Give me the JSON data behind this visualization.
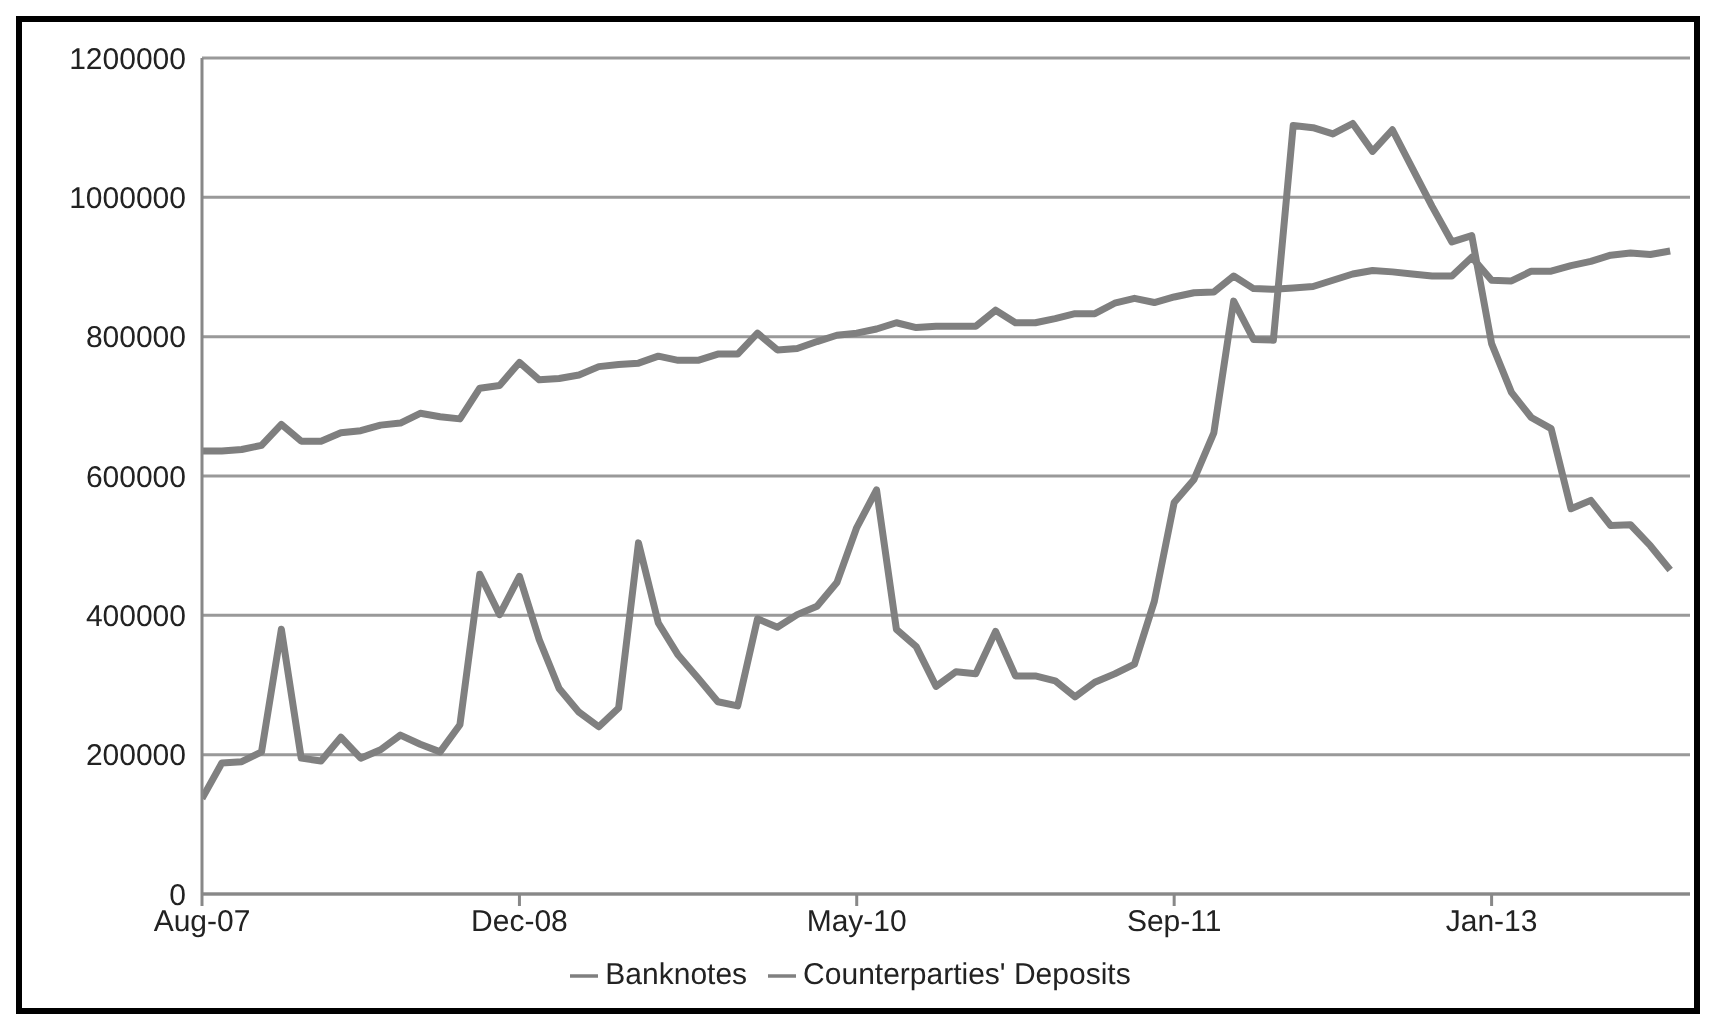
{
  "chart_data": {
    "type": "line",
    "x": [
      "2007-08",
      "2007-09",
      "2007-10",
      "2007-11",
      "2007-12",
      "2008-01",
      "2008-02",
      "2008-03",
      "2008-04",
      "2008-05",
      "2008-06",
      "2008-07",
      "2008-08",
      "2008-09",
      "2008-10",
      "2008-11",
      "2008-12",
      "2009-01",
      "2009-02",
      "2009-03",
      "2009-04",
      "2009-05",
      "2009-06",
      "2009-07",
      "2009-08",
      "2009-09",
      "2009-10",
      "2009-11",
      "2009-12",
      "2010-01",
      "2010-02",
      "2010-03",
      "2010-04",
      "2010-05",
      "2010-06",
      "2010-07",
      "2010-08",
      "2010-09",
      "2010-10",
      "2010-11",
      "2010-12",
      "2011-01",
      "2011-02",
      "2011-03",
      "2011-04",
      "2011-05",
      "2011-06",
      "2011-07",
      "2011-08",
      "2011-09",
      "2011-10",
      "2011-11",
      "2011-12",
      "2012-01",
      "2012-02",
      "2012-03",
      "2012-04",
      "2012-05",
      "2012-06",
      "2012-07",
      "2012-08",
      "2012-09",
      "2012-10",
      "2012-11",
      "2012-12",
      "2013-01",
      "2013-02",
      "2013-03",
      "2013-04",
      "2013-05",
      "2013-06",
      "2013-07",
      "2013-08",
      "2013-09",
      "2013-10"
    ],
    "series": [
      {
        "name": "Banknotes",
        "color": "#7f7f7f",
        "values": [
          636000,
          636000,
          638000,
          644000,
          674000,
          650000,
          650000,
          662000,
          665000,
          673000,
          676000,
          690000,
          685000,
          682000,
          726000,
          730000,
          763000,
          738000,
          740000,
          745000,
          757000,
          760000,
          762000,
          772000,
          766000,
          766000,
          775000,
          775000,
          805000,
          781000,
          783000,
          793000,
          802000,
          805000,
          811000,
          820000,
          813000,
          815000,
          815000,
          815000,
          838000,
          820000,
          820000,
          826000,
          833000,
          833000,
          848000,
          855000,
          849000,
          857000,
          863000,
          864000,
          887000,
          869000,
          868000,
          870000,
          872000,
          881000,
          890000,
          895000,
          893000,
          890000,
          887000,
          887000,
          914000,
          881000,
          880000,
          894000,
          894000,
          902000,
          908000,
          917000,
          920000,
          918000,
          923000
        ]
      },
      {
        "name": "Counterparties' Deposits",
        "color": "#808080",
        "values": [
          137000,
          188000,
          190000,
          204000,
          380000,
          195000,
          191000,
          225000,
          195000,
          207000,
          228000,
          215000,
          204000,
          243000,
          459000,
          401000,
          456000,
          365000,
          295000,
          261000,
          240000,
          267000,
          504000,
          389000,
          343000,
          310000,
          276000,
          270000,
          395000,
          383000,
          401000,
          413000,
          447000,
          526000,
          580000,
          380000,
          355000,
          298000,
          319000,
          316000,
          377000,
          313000,
          313000,
          306000,
          283000,
          304000,
          316000,
          330000,
          420000,
          562000,
          595000,
          662000,
          851000,
          796000,
          795000,
          1103000,
          1100000,
          1091000,
          1106000,
          1066000,
          1097000,
          1042000,
          987000,
          936000,
          945000,
          790000,
          720000,
          684000,
          668000,
          553000,
          565000,
          529000,
          530000,
          500000,
          465000
        ]
      }
    ],
    "xlim": [
      "2007-08",
      "2013-11"
    ],
    "xticks": [
      {
        "value": "2007-08",
        "label": "Aug-07"
      },
      {
        "value": "2008-12",
        "label": "Dec-08"
      },
      {
        "value": "2010-05",
        "label": "May-10"
      },
      {
        "value": "2011-09",
        "label": "Sep-11"
      },
      {
        "value": "2013-01",
        "label": "Jan-13"
      }
    ],
    "ylim": [
      0,
      1200000
    ],
    "yticks": [
      0,
      200000,
      400000,
      600000,
      800000,
      1000000,
      1200000
    ],
    "grid": "y",
    "legend": "bottom",
    "marker": "none",
    "line_style": "solid"
  }
}
